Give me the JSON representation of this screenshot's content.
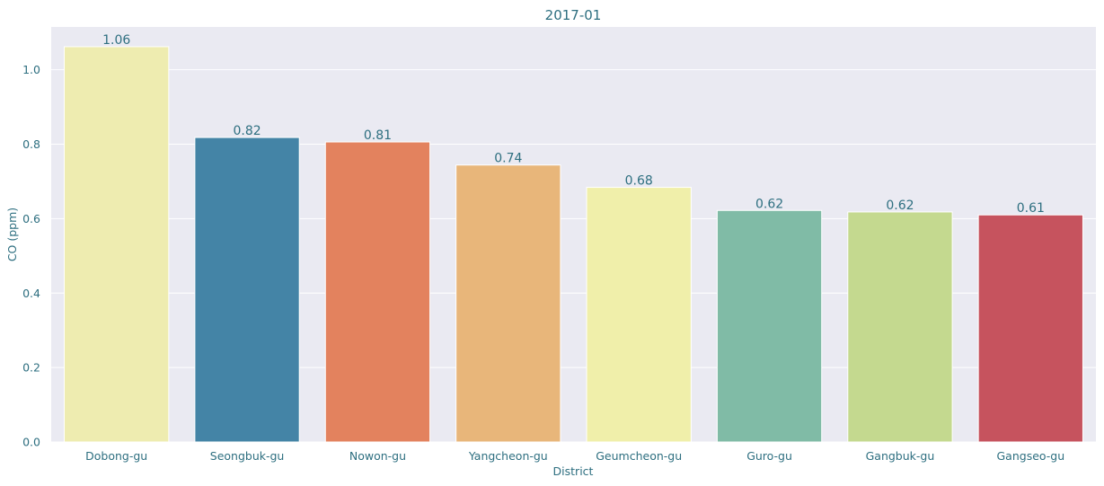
{
  "chart_data": {
    "type": "bar",
    "title": "2017-01",
    "xlabel": "District",
    "ylabel": "CO (ppm)",
    "categories": [
      "Dobong-gu",
      "Seongbuk-gu",
      "Nowon-gu",
      "Yangcheon-gu",
      "Geumcheon-gu",
      "Guro-gu",
      "Gangbuk-gu",
      "Gangseo-gu"
    ],
    "values": [
      1.062,
      0.818,
      0.806,
      0.744,
      0.684,
      0.622,
      0.618,
      0.61
    ],
    "value_labels": [
      "1.06",
      "0.82",
      "0.81",
      "0.74",
      "0.68",
      "0.62",
      "0.62",
      "0.61"
    ],
    "colors": [
      "#eeecb0",
      "#4484a6",
      "#e3825e",
      "#e8b67a",
      "#f0efaa",
      "#80bba6",
      "#c4d98f",
      "#c6535e"
    ],
    "yticks": [
      0.0,
      0.2,
      0.4,
      0.6,
      0.8,
      1.0
    ],
    "ytick_labels": [
      "0.0",
      "0.2",
      "0.4",
      "0.6",
      "0.8",
      "1.0"
    ],
    "ylim": [
      0,
      1.115
    ],
    "grid": true,
    "background": "#eaeaf2"
  }
}
